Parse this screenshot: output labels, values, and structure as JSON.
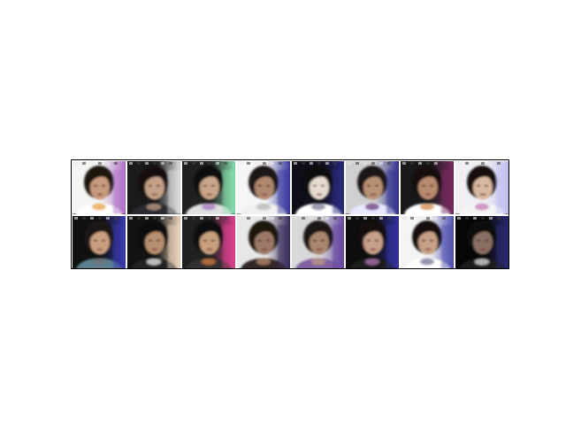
{
  "figure": {
    "rows": 2,
    "cols": 8,
    "tiles": [
      {
        "bg": "#f4f4f2",
        "side": "#b070c8",
        "hair": "#1a1410",
        "skin": "#c89a7c",
        "shirt": "#ffffff",
        "accent": "#e39a3a"
      },
      {
        "bg": "#1a1a1a",
        "side": "#e0e0e0",
        "hair": "#141110",
        "skin": "#c4a088",
        "shirt": "#2a2a30",
        "accent": "#ccaa90"
      },
      {
        "bg": "#202020",
        "side": "#8ae0b0",
        "hair": "#100e0c",
        "skin": "#caa58a",
        "shirt": "#e0e0e0",
        "accent": "#a070c0"
      },
      {
        "bg": "#f6f6f6",
        "side": "#3a3aa0",
        "hair": "#1a1612",
        "skin": "#b08870",
        "shirt": "#f0f0f0",
        "accent": "#b0b0b0"
      },
      {
        "bg": "#0e0e18",
        "side": "#2a2a80",
        "hair": "#0c0a08",
        "skin": "#e8dcd0",
        "shirt": "#ffffff",
        "accent": "#707090"
      },
      {
        "bg": "#d0d0d0",
        "side": "#303090",
        "hair": "#1a1612",
        "skin": "#b89274",
        "shirt": "#e8e8ff",
        "accent": "#603070"
      },
      {
        "bg": "#181818",
        "side": "#7a2a60",
        "hair": "#141010",
        "skin": "#b88a70",
        "shirt": "#ffffff",
        "accent": "#d08040"
      },
      {
        "bg": "#f0f0f4",
        "side": "#c0c0f0",
        "hair": "#141010",
        "skin": "#d8b8a0",
        "shirt": "#f4f4f4",
        "accent": "#c070b0"
      },
      {
        "bg": "#101010",
        "side": "#3a3ab0",
        "hair": "#1a1612",
        "skin": "#caa080",
        "shirt": "#5a8090",
        "accent": "#707070"
      },
      {
        "bg": "#121212",
        "side": "#f0d8c0",
        "hair": "#0e0c0a",
        "skin": "#b89070",
        "shirt": "#202020",
        "accent": "#ffffff"
      },
      {
        "bg": "#202020",
        "side": "#e04090",
        "hair": "#100e0c",
        "skin": "#c8a07e",
        "shirt": "#303030",
        "accent": "#e08040"
      },
      {
        "bg": "#e8e8e8",
        "side": "#3a2a5a",
        "hair": "#1a1410",
        "skin": "#9c7a68",
        "shirt": "#302828",
        "accent": "#c09070"
      },
      {
        "bg": "#d8d8d8",
        "side": "#6040a0",
        "hair": "#1a1612",
        "skin": "#a88670",
        "shirt": "#8060a0",
        "accent": "#c0a080"
      },
      {
        "bg": "#0e0e0e",
        "side": "#3030a0",
        "hair": "#141010",
        "skin": "#c8a08a",
        "shirt": "#1a1a1a",
        "accent": "#c080c0"
      },
      {
        "bg": "#f4f4f4",
        "side": "#5050b0",
        "hair": "#141010",
        "skin": "#c8a086",
        "shirt": "#ffffff",
        "accent": "#6a6a90"
      },
      {
        "bg": "#060606",
        "side": "#2a2a70",
        "hair": "#0e0c0a",
        "skin": "#8a7064",
        "shirt": "#1a1a1a",
        "accent": "#f0f0f0"
      }
    ]
  }
}
